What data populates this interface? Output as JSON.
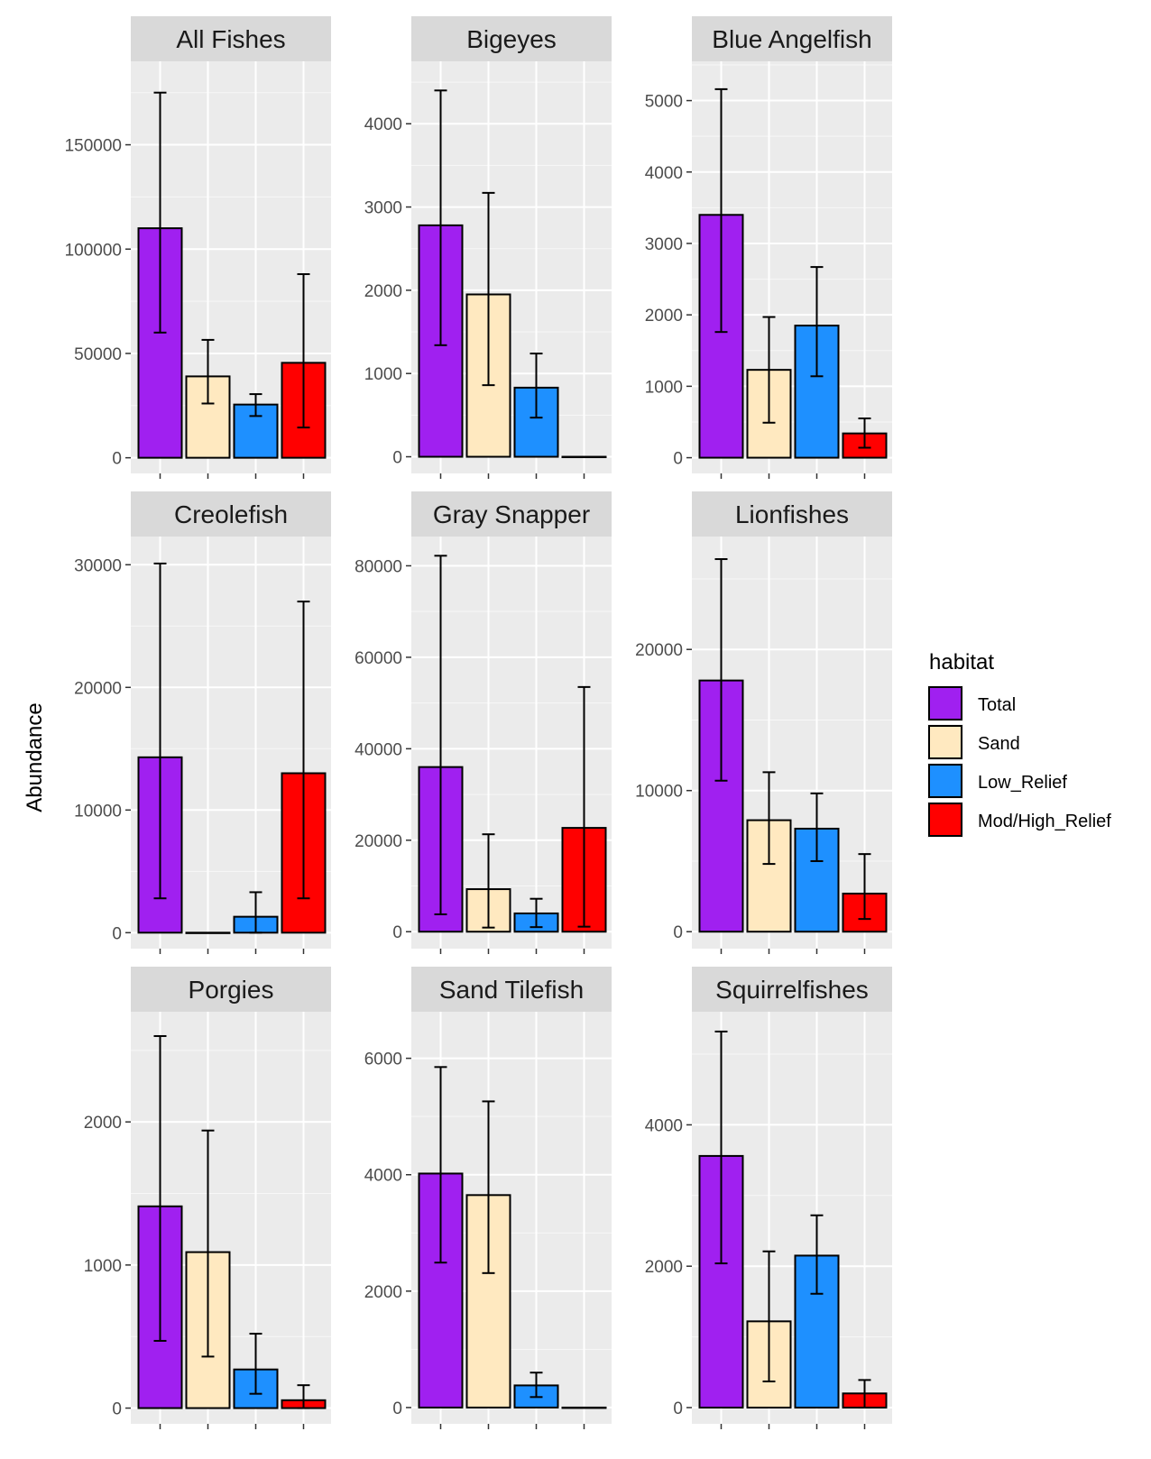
{
  "chart_data": {
    "type": "bar",
    "ylabel": "Abundance",
    "legend": {
      "title": "habitat",
      "position": "right",
      "entries": [
        {
          "label": "Total",
          "color": "#A020F0"
        },
        {
          "label": "Sand",
          "color": "#FFE9C0"
        },
        {
          "label": "Low_Relief",
          "color": "#1E90FF"
        },
        {
          "label": "Mod/High_Relief",
          "color": "#FF0000"
        }
      ]
    },
    "categories": [
      "Total",
      "Sand",
      "Low_Relief",
      "Mod/High_Relief"
    ],
    "panels": [
      {
        "title": "All Fishes",
        "ylim": [
          -7500,
          190000
        ],
        "ticks": [
          0,
          50000,
          100000,
          150000
        ],
        "values": [
          110000,
          39000,
          25500,
          45500
        ],
        "errors": [
          [
            60000,
            175000
          ],
          [
            26000,
            56500
          ],
          [
            20000,
            30500
          ],
          [
            14500,
            88000
          ]
        ]
      },
      {
        "title": "Bigeyes",
        "ylim": [
          -200,
          4750
        ],
        "ticks": [
          0,
          1000,
          2000,
          3000,
          4000
        ],
        "values": [
          2780,
          1950,
          830,
          0
        ],
        "errors": [
          [
            1340,
            4400
          ],
          [
            860,
            3170
          ],
          [
            470,
            1240
          ],
          [
            0,
            0
          ]
        ]
      },
      {
        "title": "Blue Angelfish",
        "ylim": [
          -220,
          5550
        ],
        "ticks": [
          0,
          1000,
          2000,
          3000,
          4000,
          5000
        ],
        "values": [
          3400,
          1230,
          1850,
          340
        ],
        "errors": [
          [
            1760,
            5160
          ],
          [
            490,
            1970
          ],
          [
            1140,
            2670
          ],
          [
            140,
            550
          ]
        ]
      },
      {
        "title": "Creolefish",
        "ylim": [
          -1300,
          32300
        ],
        "ticks": [
          0,
          10000,
          20000,
          30000
        ],
        "values": [
          14300,
          0,
          1300,
          13000
        ],
        "errors": [
          [
            2800,
            30100
          ],
          [
            0,
            0
          ],
          [
            0,
            3300
          ],
          [
            2800,
            27000
          ]
        ]
      },
      {
        "title": "Gray Snapper",
        "ylim": [
          -3700,
          86400
        ],
        "ticks": [
          0,
          20000,
          40000,
          60000,
          80000
        ],
        "values": [
          36000,
          9300,
          4000,
          22700
        ],
        "errors": [
          [
            3800,
            82200
          ],
          [
            900,
            21300
          ],
          [
            1000,
            7200
          ],
          [
            1100,
            53500
          ]
        ]
      },
      {
        "title": "Lionfishes",
        "ylim": [
          -1200,
          28000
        ],
        "ticks": [
          0,
          10000,
          20000
        ],
        "values": [
          17800,
          7900,
          7300,
          2700
        ],
        "errors": [
          [
            10700,
            26400
          ],
          [
            4800,
            11300
          ],
          [
            5000,
            9800
          ],
          [
            900,
            5500
          ]
        ]
      },
      {
        "title": "Porgies",
        "ylim": [
          -110,
          2770
        ],
        "ticks": [
          0,
          1000,
          2000
        ],
        "values": [
          1410,
          1090,
          270,
          55
        ],
        "errors": [
          [
            470,
            2600
          ],
          [
            360,
            1940
          ],
          [
            100,
            520
          ],
          [
            0,
            160
          ]
        ]
      },
      {
        "title": "Sand Tilefish",
        "ylim": [
          -280,
          6800
        ],
        "ticks": [
          0,
          2000,
          4000,
          6000
        ],
        "values": [
          4020,
          3650,
          380,
          0
        ],
        "errors": [
          [
            2490,
            5850
          ],
          [
            2310,
            5260
          ],
          [
            180,
            600
          ],
          [
            0,
            0
          ]
        ]
      },
      {
        "title": "Squirrelfishes",
        "ylim": [
          -230,
          5600
        ],
        "ticks": [
          0,
          2000,
          4000
        ],
        "values": [
          3560,
          1220,
          2150,
          200
        ],
        "errors": [
          [
            2040,
            5320
          ],
          [
            370,
            2210
          ],
          [
            1610,
            2720
          ],
          [
            0,
            390
          ]
        ]
      }
    ]
  }
}
